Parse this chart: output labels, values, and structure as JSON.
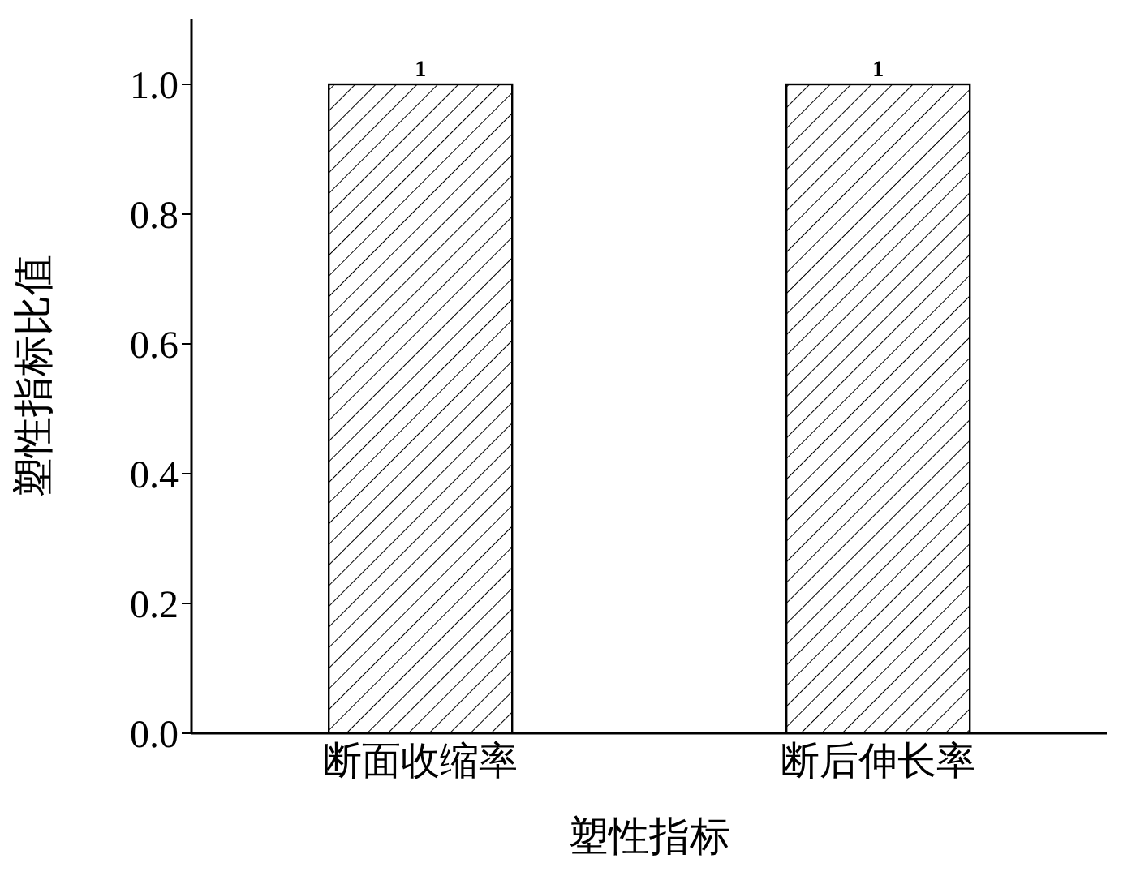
{
  "chart_data": {
    "type": "bar",
    "xlabel": "塑性指标",
    "ylabel": "塑性指标比值",
    "categories": [
      "断面收缩率",
      "断后伸长率"
    ],
    "values": [
      1,
      1
    ],
    "color": "#000000",
    "data_labels": true,
    "ylim": [
      0,
      1.1
    ],
    "yticks": [
      {
        "value": 0,
        "label": "0.0"
      },
      {
        "value": 0.2,
        "label": "0.2"
      },
      {
        "value": 0.4,
        "label": "0.4"
      },
      {
        "value": 0.6,
        "label": "0.6"
      },
      {
        "value": 0.8,
        "label": "0.8"
      },
      {
        "value": 1,
        "label": "1.0"
      }
    ],
    "grid": false,
    "legend": false
  }
}
